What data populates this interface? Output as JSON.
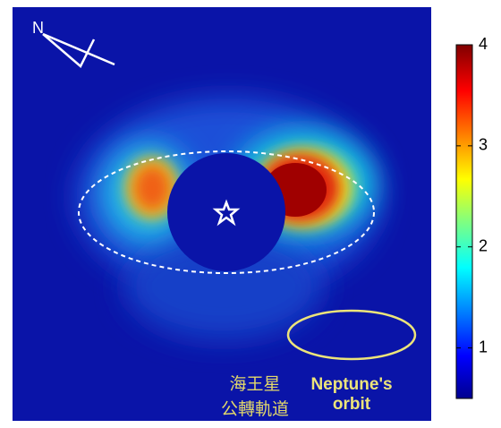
{
  "compass": {
    "label": "N"
  },
  "annotation": {
    "lines": [
      "海王星",
      "公轉軌道"
    ]
  },
  "legend": {
    "lines": [
      "Neptune's",
      "orbit"
    ]
  },
  "colorbar": {
    "range": [
      0.5,
      4
    ],
    "ticks": [
      1,
      2,
      3,
      4
    ]
  }
}
